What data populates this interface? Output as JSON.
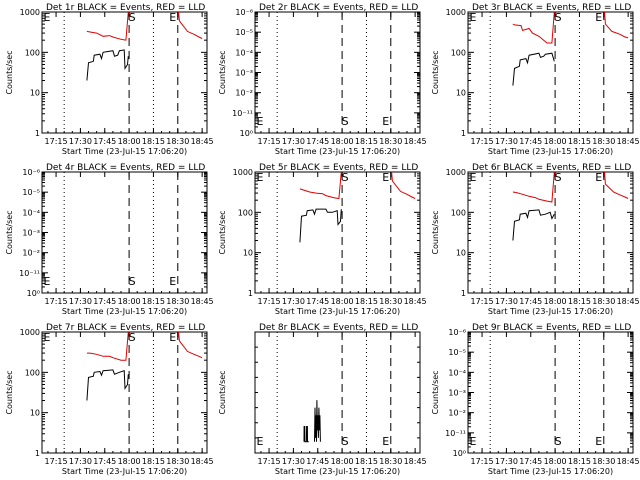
{
  "page": {
    "title": "",
    "colors": {
      "events": "#000000",
      "lld": "#e00000"
    }
  },
  "common": {
    "xlabel": "Start Time (23-Jul-15 17:06:20)",
    "ylabel": "Counts/sec",
    "xticks": [
      "17:15",
      "17:30",
      "17:45",
      "18:00",
      "18:15",
      "18:30",
      "18:45"
    ],
    "dotted_lines_hhmm": [
      "17:20",
      "18:15"
    ],
    "s_marker": "S",
    "e_marker": "E"
  },
  "chart_data": [
    {
      "type": "line",
      "title": "Det 1r BLACK = Events, RED = LLD",
      "y_scale": "log",
      "ytick_labels": [
        "1",
        "10",
        "100",
        "1000"
      ],
      "s_time": "18:00",
      "e_time": "18:30",
      "grid": false,
      "legend": "in title",
      "series": [
        {
          "color": "#000000",
          "points": [
            [
              "17:34",
              20
            ],
            [
              "17:35",
              55
            ],
            [
              "17:38",
              60
            ],
            [
              "17:38.5",
              85
            ],
            [
              "17:42",
              90
            ],
            [
              "17:43",
              70
            ],
            [
              "17:44",
              100
            ],
            [
              "17:50",
              110
            ],
            [
              "17:51",
              80
            ],
            [
              "17:53",
              85
            ],
            [
              "17:54",
              110
            ],
            [
              "17:57",
              115
            ],
            [
              "17:57.5",
              40
            ],
            [
              "17:59",
              50
            ],
            [
              "17:59.5",
              80
            ]
          ]
        },
        {
          "color": "#e00000",
          "points": [
            [
              "17:34",
              330
            ],
            [
              "17:36",
              320
            ],
            [
              "17:40",
              300
            ],
            [
              "17:44",
              250
            ],
            [
              "17:48",
              260
            ],
            [
              "17:50",
              240
            ],
            [
              "17:55",
              210
            ],
            [
              "17:58",
              200
            ],
            [
              "17:59.5",
              1000
            ]
          ]
        },
        {
          "color": "#e00000",
          "points": [
            [
              "18:30.5",
              1000
            ],
            [
              "18:31",
              600
            ],
            [
              "18:36",
              330
            ],
            [
              "18:40",
              280
            ],
            [
              "18:43",
              240
            ],
            [
              "18:45",
              220
            ]
          ]
        }
      ]
    },
    {
      "type": "line",
      "title": "Det 2r BLACK = Events, RED = LLD",
      "y_scale": "log",
      "ytick_labels": [
        "10⁰",
        "10⁻¹¹",
        "10⁻²",
        "10⁻³",
        "10⁻⁴",
        "10⁻⁵",
        "10⁻⁶"
      ],
      "s_time": "18:00",
      "e_time": "18:30",
      "grid": false,
      "legend": "in title",
      "series": []
    },
    {
      "type": "line",
      "title": "Det 3r BLACK = Events, RED = LLD",
      "y_scale": "log",
      "ytick_labels": [
        "1",
        "10",
        "100",
        "1000"
      ],
      "s_time": "18:00",
      "e_time": "18:30",
      "grid": false,
      "legend": "in title",
      "series": [
        {
          "color": "#000000",
          "points": [
            [
              "17:34",
              15
            ],
            [
              "17:35",
              40
            ],
            [
              "17:38",
              45
            ],
            [
              "17:38.5",
              65
            ],
            [
              "17:42",
              70
            ],
            [
              "17:43",
              55
            ],
            [
              "17:44",
              85
            ],
            [
              "17:50",
              95
            ],
            [
              "17:51",
              75
            ],
            [
              "17:53",
              80
            ],
            [
              "17:54",
              90
            ],
            [
              "17:58",
              95
            ],
            [
              "17:59.5",
              60
            ]
          ]
        },
        {
          "color": "#e00000",
          "points": [
            [
              "17:34",
              500
            ],
            [
              "17:35",
              480
            ],
            [
              "17:39",
              460
            ],
            [
              "17:40",
              350
            ],
            [
              "17:44",
              390
            ],
            [
              "17:46",
              300
            ],
            [
              "17:50",
              250
            ],
            [
              "17:55",
              170
            ],
            [
              "17:58",
              170
            ],
            [
              "17:59.5",
              1000
            ]
          ]
        },
        {
          "color": "#e00000",
          "points": [
            [
              "18:30.5",
              1000
            ],
            [
              "18:31",
              500
            ],
            [
              "18:35",
              330
            ],
            [
              "18:40",
              280
            ],
            [
              "18:43",
              240
            ],
            [
              "18:45",
              230
            ]
          ]
        }
      ]
    },
    {
      "type": "line",
      "title": "Det 4r BLACK = Events, RED = LLD",
      "y_scale": "log",
      "ytick_labels": [
        "10⁰",
        "10⁻¹¹",
        "10⁻²",
        "10⁻³",
        "10⁻⁴",
        "10⁻⁵",
        "10⁻⁶"
      ],
      "s_time": "18:00",
      "e_time": "18:30",
      "grid": false,
      "legend": "in title",
      "series": []
    },
    {
      "type": "line",
      "title": "Det 5r BLACK = Events, RED = LLD",
      "y_scale": "log",
      "ytick_labels": [
        "1",
        "10",
        "100",
        "1000"
      ],
      "s_time": "18:00",
      "e_time": "18:30",
      "grid": false,
      "legend": "in title",
      "series": [
        {
          "color": "#000000",
          "points": [
            [
              "17:34",
              18
            ],
            [
              "17:35",
              80
            ],
            [
              "17:38",
              85
            ],
            [
              "17:38.5",
              110
            ],
            [
              "17:42",
              115
            ],
            [
              "17:43",
              90
            ],
            [
              "17:44",
              120
            ],
            [
              "17:50",
              120
            ],
            [
              "17:51",
              100
            ],
            [
              "17:54",
              100
            ],
            [
              "17:57",
              110
            ],
            [
              "17:57.5",
              50
            ],
            [
              "17:59",
              60
            ],
            [
              "17:59.5",
              120
            ]
          ]
        },
        {
          "color": "#e00000",
          "points": [
            [
              "17:34",
              380
            ],
            [
              "17:36",
              360
            ],
            [
              "17:40",
              320
            ],
            [
              "17:44",
              300
            ],
            [
              "17:48",
              290
            ],
            [
              "17:50",
              260
            ],
            [
              "17:55",
              230
            ],
            [
              "17:58",
              220
            ],
            [
              "17:59.5",
              1000
            ]
          ]
        },
        {
          "color": "#e00000",
          "points": [
            [
              "18:30.5",
              1000
            ],
            [
              "18:31",
              600
            ],
            [
              "18:36",
              330
            ],
            [
              "18:40",
              280
            ],
            [
              "18:43",
              240
            ],
            [
              "18:45",
              220
            ]
          ]
        }
      ]
    },
    {
      "type": "line",
      "title": "Det 6r BLACK = Events, RED = LLD",
      "y_scale": "log",
      "ytick_labels": [
        "1",
        "10",
        "100",
        "1000"
      ],
      "s_time": "18:00",
      "e_time": "18:30",
      "grid": false,
      "legend": "in title",
      "series": [
        {
          "color": "#000000",
          "points": [
            [
              "17:34",
              20
            ],
            [
              "17:35",
              60
            ],
            [
              "17:38",
              65
            ],
            [
              "17:38.5",
              90
            ],
            [
              "17:42",
              95
            ],
            [
              "17:43",
              75
            ],
            [
              "17:44",
              110
            ],
            [
              "17:50",
              115
            ],
            [
              "17:51",
              85
            ],
            [
              "17:54",
              90
            ],
            [
              "17:57",
              100
            ],
            [
              "17:58",
              70
            ],
            [
              "17:59.5",
              90
            ]
          ]
        },
        {
          "color": "#e00000",
          "points": [
            [
              "17:34",
              320
            ],
            [
              "17:36",
              310
            ],
            [
              "17:40",
              280
            ],
            [
              "17:44",
              250
            ],
            [
              "17:48",
              230
            ],
            [
              "17:50",
              210
            ],
            [
              "17:55",
              190
            ],
            [
              "17:58",
              180
            ],
            [
              "17:59.5",
              1000
            ]
          ]
        },
        {
          "color": "#e00000",
          "points": [
            [
              "18:30.5",
              1000
            ],
            [
              "18:31",
              500
            ],
            [
              "18:36",
              320
            ],
            [
              "18:40",
              270
            ],
            [
              "18:43",
              240
            ],
            [
              "18:45",
              220
            ]
          ]
        }
      ]
    },
    {
      "type": "line",
      "title": "Det 7r BLACK = Events, RED = LLD",
      "y_scale": "log",
      "ytick_labels": [
        "1",
        "10",
        "100",
        "1000"
      ],
      "s_time": "18:00",
      "e_time": "18:30",
      "grid": false,
      "legend": "in title",
      "series": [
        {
          "color": "#000000",
          "points": [
            [
              "17:34",
              20
            ],
            [
              "17:35",
              75
            ],
            [
              "17:38",
              80
            ],
            [
              "17:38.5",
              100
            ],
            [
              "17:42",
              105
            ],
            [
              "17:43",
              85
            ],
            [
              "17:44",
              110
            ],
            [
              "17:50",
              115
            ],
            [
              "17:51",
              90
            ],
            [
              "17:54",
              100
            ],
            [
              "17:57",
              110
            ],
            [
              "17:57.5",
              40
            ],
            [
              "17:59",
              50
            ],
            [
              "17:59.5",
              90
            ]
          ]
        },
        {
          "color": "#e00000",
          "points": [
            [
              "17:34",
              300
            ],
            [
              "17:36",
              300
            ],
            [
              "17:40",
              280
            ],
            [
              "17:44",
              250
            ],
            [
              "17:48",
              250
            ],
            [
              "17:50",
              230
            ],
            [
              "17:55",
              200
            ],
            [
              "17:58",
              200
            ],
            [
              "17:59.5",
              1000
            ]
          ]
        },
        {
          "color": "#e00000",
          "points": [
            [
              "18:30.5",
              1000
            ],
            [
              "18:31",
              600
            ],
            [
              "18:36",
              330
            ],
            [
              "18:40",
              280
            ],
            [
              "18:43",
              250
            ],
            [
              "18:45",
              230
            ]
          ]
        }
      ]
    },
    {
      "type": "line",
      "title": "Det 8r BLACK = Events, RED = LLD",
      "y_scale": "log",
      "ytick_labels": [],
      "s_time": "18:00",
      "e_time": "18:30",
      "grid": false,
      "legend": "in title",
      "series": [
        {
          "color": "#000000",
          "points": [
            [
              "17:36.5",
              1.5
            ],
            [
              "17:36.6",
              3.5
            ],
            [
              "17:37",
              3.5
            ],
            [
              "17:37.1",
              1.5
            ],
            [
              "17:38",
              1.5
            ],
            [
              "17:38.1",
              3.5
            ],
            [
              "17:38.6",
              3.5
            ],
            [
              "17:38.7",
              1.5
            ],
            [
              "17:39.5",
              1.5
            ]
          ]
        },
        {
          "color": "#000000",
          "points": [
            [
              "17:43",
              1.5
            ],
            [
              "17:43.3",
              6
            ],
            [
              "17:43.6",
              2
            ],
            [
              "17:43.9",
              5
            ],
            [
              "17:44.2",
              1.5
            ],
            [
              "17:44.5",
              7
            ],
            [
              "17:44.8",
              3
            ],
            [
              "17:45.1",
              5
            ],
            [
              "17:45.4",
              2
            ],
            [
              "17:45.7",
              6
            ],
            [
              "17:46",
              3
            ],
            [
              "17:46.3",
              5
            ],
            [
              "17:46.6",
              1.5
            ]
          ]
        }
      ]
    },
    {
      "type": "line",
      "title": "Det 9r BLACK = Events, RED = LLD",
      "y_scale": "log",
      "ytick_labels": [
        "10⁰",
        "10⁻¹¹",
        "10⁻²",
        "10⁻³",
        "10⁻⁴",
        "10⁻⁵",
        "10⁻⁶"
      ],
      "s_time": "18:00",
      "e_time": "18:30",
      "grid": false,
      "legend": "in title",
      "series": []
    }
  ]
}
